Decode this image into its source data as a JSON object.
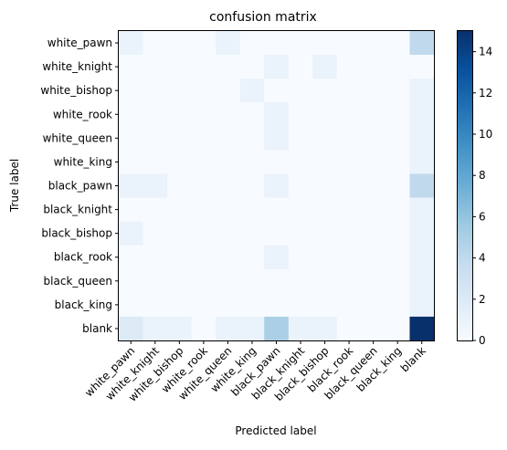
{
  "chart_data": {
    "type": "heatmap",
    "title": "confusion matrix",
    "xlabel": "Predicted label",
    "ylabel": "True label",
    "x_categories": [
      "white_pawn",
      "white_knight",
      "white_bishop",
      "white_rook",
      "white_queen",
      "white_king",
      "black_pawn",
      "black_knight",
      "black_bishop",
      "black_rook",
      "black_queen",
      "black_king",
      "blank"
    ],
    "y_categories": [
      "white_pawn",
      "white_knight",
      "white_bishop",
      "white_rook",
      "white_queen",
      "white_king",
      "black_pawn",
      "black_knight",
      "black_bishop",
      "black_rook",
      "black_queen",
      "black_king",
      "blank"
    ],
    "values": [
      [
        1,
        0,
        0,
        0,
        1,
        0,
        0,
        0,
        0,
        0,
        0,
        0,
        4
      ],
      [
        0,
        0,
        0,
        0,
        0,
        0,
        1,
        0,
        1,
        0,
        0,
        0,
        0
      ],
      [
        0,
        0,
        0,
        0,
        0,
        1,
        0,
        0,
        0,
        0,
        0,
        0,
        1
      ],
      [
        0,
        0,
        0,
        0,
        0,
        0,
        1,
        0,
        0,
        0,
        0,
        0,
        1
      ],
      [
        0,
        0,
        0,
        0,
        0,
        0,
        1,
        0,
        0,
        0,
        0,
        0,
        1
      ],
      [
        0,
        0,
        0,
        0,
        0,
        0,
        0,
        0,
        0,
        0,
        0,
        0,
        1
      ],
      [
        1,
        1,
        0,
        0,
        0,
        0,
        1,
        0,
        0,
        0,
        0,
        0,
        4
      ],
      [
        0,
        0,
        0,
        0,
        0,
        0,
        0,
        0,
        0,
        0,
        0,
        0,
        1
      ],
      [
        1,
        0,
        0,
        0,
        0,
        0,
        0,
        0,
        0,
        0,
        0,
        0,
        1
      ],
      [
        0,
        0,
        0,
        0,
        0,
        0,
        1,
        0,
        0,
        0,
        0,
        0,
        1
      ],
      [
        0,
        0,
        0,
        0,
        0,
        0,
        0,
        0,
        0,
        0,
        0,
        0,
        1
      ],
      [
        0,
        0,
        0,
        0,
        0,
        0,
        0,
        0,
        0,
        0,
        0,
        0,
        1
      ],
      [
        2,
        1,
        1,
        0,
        1,
        1,
        5,
        1,
        1,
        0,
        0,
        0,
        15
      ]
    ],
    "colorbar": {
      "min": 0,
      "max": 15,
      "ticks": [
        0,
        2,
        4,
        6,
        8,
        10,
        12,
        14
      ],
      "colormap": "Blues",
      "low_color": "#f7fbff",
      "high_color": "#08306b"
    },
    "grid": false
  }
}
